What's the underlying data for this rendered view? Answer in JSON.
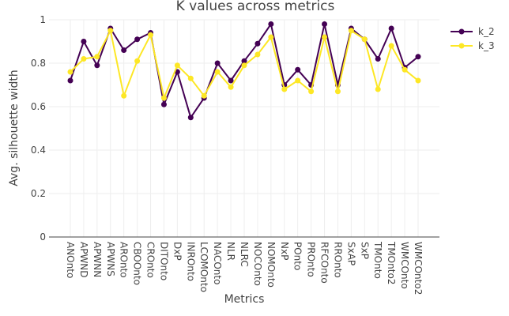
{
  "chart_data": {
    "type": "line",
    "title": "K values across metrics",
    "xlabel": "Metrics",
    "ylabel": "Avg. silhouette width",
    "ylim": [
      0,
      1
    ],
    "yticks": [
      0,
      0.2,
      0.4,
      0.6,
      0.8,
      1
    ],
    "ytick_labels": [
      "0",
      "0.2",
      "0.4",
      "0.6",
      "0.8",
      "1"
    ],
    "grid": true,
    "legend_position": "top-right",
    "categories": [
      "ANOnto",
      "APWND",
      "APWNN",
      "APWNS",
      "AROnto",
      "CBOOnto",
      "CROnto",
      "DITOnto",
      "DxP",
      "INROnto",
      "LCOMOnto",
      "NACOnto",
      "NLR",
      "NLRC",
      "NOCOnto",
      "NOMOnto",
      "NxP",
      "POnto",
      "PROnto",
      "RFCOnto",
      "RROnto",
      "SxAP",
      "SxP",
      "TMOnto",
      "TMOnto2",
      "WMCOnto",
      "WMCOnto2"
    ],
    "series": [
      {
        "name": "k_2",
        "color": "#440154",
        "values": [
          0.72,
          0.9,
          0.79,
          0.96,
          0.86,
          0.91,
          0.94,
          0.61,
          0.76,
          0.55,
          0.64,
          0.8,
          0.72,
          0.81,
          0.89,
          0.98,
          0.7,
          0.77,
          0.7,
          0.98,
          0.7,
          0.96,
          0.91,
          0.82,
          0.96,
          0.78,
          0.83
        ]
      },
      {
        "name": "k_3",
        "color": "#fde725",
        "values": [
          0.76,
          0.82,
          0.83,
          0.95,
          0.65,
          0.81,
          0.93,
          0.64,
          0.79,
          0.73,
          0.65,
          0.76,
          0.69,
          0.79,
          0.84,
          0.92,
          0.68,
          0.72,
          0.67,
          0.92,
          0.67,
          0.95,
          0.91,
          0.68,
          0.88,
          0.77,
          0.72
        ]
      }
    ]
  }
}
